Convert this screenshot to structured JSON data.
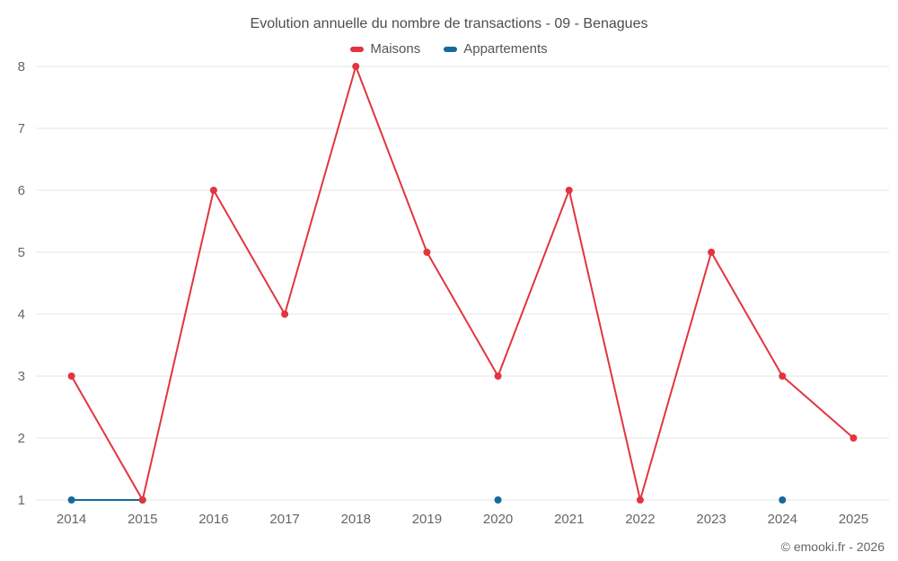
{
  "title": "Evolution annuelle du nombre de transactions - 09 - Benagues",
  "credits": "© emooki.fr - 2026",
  "colors": {
    "grid": "#e6e6e6",
    "axis_text": "#666666",
    "title_text": "#4d4d4d",
    "background": "#ffffff"
  },
  "chart_data": {
    "type": "line",
    "title": "Evolution annuelle du nombre de transactions - 09 - Benagues",
    "categories": [
      "2014",
      "2015",
      "2016",
      "2017",
      "2018",
      "2019",
      "2020",
      "2021",
      "2022",
      "2023",
      "2024",
      "2025"
    ],
    "series": [
      {
        "name": "Maisons",
        "color": "#e2353f",
        "values": [
          3,
          1,
          6,
          4,
          8,
          5,
          3,
          6,
          1,
          5,
          3,
          2
        ]
      },
      {
        "name": "Appartements",
        "color": "#15699b",
        "values": [
          1,
          1,
          null,
          null,
          null,
          null,
          1,
          null,
          null,
          null,
          1,
          null
        ]
      }
    ],
    "xlabel": "",
    "ylabel": "",
    "ylim": [
      1,
      8
    ],
    "yticks": [
      1,
      2,
      3,
      4,
      5,
      6,
      7,
      8
    ],
    "grid": "horizontal",
    "legend_position": "top"
  }
}
